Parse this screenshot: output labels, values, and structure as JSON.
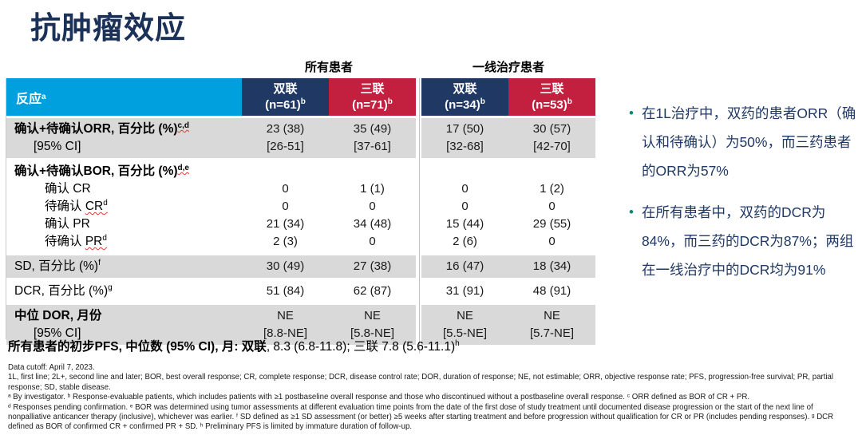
{
  "slide": {
    "title": "抗肿瘤效应"
  },
  "colors": {
    "title_navy": "#1C3158",
    "header_cyan": "#00A0DF",
    "header_navy": "#1F3864",
    "header_red": "#C2203E",
    "row_gray": "#D9D9D9",
    "bullet_dot_teal": "#0E8672",
    "bullet_text_navy": "#1F3864",
    "wavy_underline_red": "#E03C31"
  },
  "table": {
    "group_headers": [
      "所有患者",
      "一线治疗患者"
    ],
    "header_label": {
      "text": "反应",
      "sup": "a"
    },
    "columns": [
      {
        "name": "双联",
        "n": "(n=61)",
        "sup": "b",
        "color": "#1F3864"
      },
      {
        "name": "三联",
        "n": "(n=71)",
        "sup": "b",
        "color": "#C2203E"
      },
      {
        "name": "双联",
        "n": "(n=34)",
        "sup": "b",
        "color": "#1F3864"
      },
      {
        "name": "三联",
        "n": "(n=53)",
        "sup": "b",
        "color": "#C2203E"
      }
    ],
    "rows": [
      {
        "shade": "gray",
        "lines": [
          {
            "label": {
              "text": "确认+待确认ORR, 百分比 (%)",
              "bold": true,
              "indent": 0,
              "sup": "c,d",
              "sup_wavy": true
            },
            "values": [
              "23 (38)",
              "35 (49)",
              "17 (50)",
              "30 (57)"
            ]
          },
          {
            "label": {
              "text": "[95% CI]",
              "indent": 1
            },
            "values": [
              "[26-51]",
              "[37-61]",
              "[32-68]",
              "[42-70]"
            ]
          }
        ]
      },
      {
        "shade": "white",
        "lines": [
          {
            "label": {
              "text": "确认+待确认BOR, 百分比 (%)",
              "bold": true,
              "indent": 0,
              "sup": "d,e",
              "sup_wavy": true
            },
            "values": [
              "",
              "",
              "",
              ""
            ]
          },
          {
            "label": {
              "text": "确认 CR",
              "indent": 2
            },
            "values": [
              "0",
              "1 (1)",
              "0",
              "1 (2)"
            ]
          },
          {
            "label": {
              "text": "待确认 ",
              "indent": 2,
              "wavy_text": "CR",
              "sup": "d",
              "sup_wavy": true
            },
            "values": [
              "0",
              "0",
              "0",
              "0"
            ]
          },
          {
            "label": {
              "text": "确认 PR",
              "indent": 2
            },
            "values": [
              "21 (34)",
              "34 (48)",
              "15 (44)",
              "29 (55)"
            ]
          },
          {
            "label": {
              "text": "待确认 ",
              "indent": 2,
              "wavy_text": "PR",
              "sup": "d",
              "sup_wavy": true
            },
            "values": [
              "2 (3)",
              "0",
              "2 (6)",
              "0"
            ]
          }
        ]
      },
      {
        "shade": "gray",
        "lines": [
          {
            "label": {
              "text": "SD, 百分比 (%)",
              "indent": 0,
              "sup": "f"
            },
            "values": [
              "30 (49)",
              "27 (38)",
              "16 (47)",
              "18 (34)"
            ]
          }
        ]
      },
      {
        "shade": "white",
        "lines": [
          {
            "label": {
              "text": "DCR, 百分比 (%)",
              "indent": 0,
              "sup": "g"
            },
            "values": [
              "51 (84)",
              "62 (87)",
              "31 (91)",
              "48 (91)"
            ]
          }
        ]
      },
      {
        "shade": "gray",
        "lines": [
          {
            "label": {
              "text": "中位 DOR, 月份",
              "bold": true,
              "indent": 0
            },
            "values": [
              "NE",
              "NE",
              "NE",
              "NE"
            ]
          },
          {
            "label": {
              "text": "[95% CI]",
              "indent": 1
            },
            "values": [
              "[8.8-NE]",
              "[5.8-NE]",
              "[5.5-NE]",
              "[5.7-NE]"
            ]
          }
        ]
      }
    ]
  },
  "pfs": {
    "bold": "所有患者的初步PFS, 中位数 (95% CI), 月: 双联",
    "rest": ", 8.3 (6.8-11.8); 三联 7.8 (5.6-11.1)",
    "sup": "h"
  },
  "footnotes": [
    "Data cutoff: April 7, 2023.",
    "1L, first line; 2L+, second line and later; BOR, best overall response; CR, complete response; DCR, disease control rate; DOR, duration of response; NE, not estimable; ORR, objective response rate; PFS, progression-free survival; PR, partial response; SD, stable disease.",
    "ᵃ By investigator. ᵇ Response-evaluable patients, which includes patients with ≥1 postbaseline overall response and those who discontinued without a postbaseline overall response. ᶜ ORR defined as BOR of CR + PR.",
    "ᵈ Responses pending confirmation. ᵉ BOR was determined using tumor assessments at different evaluation time points from the date of the first dose of study treatment until documented disease progression or the start of the next line of nonpalliative anticancer therapy (inclusive), whichever was earlier. ᶠ SD defined as ≥1 SD assessment (or better) ≥5 weeks after starting treatment and before progression without qualification for CR or PR (includes pending responses). ᵍ DCR defined as BOR of confirmed CR + confirmed PR + SD. ʰ Preliminary PFS is limited by immature duration of follow-up."
  ],
  "bullets": [
    "在1L治疗中，双药的患者ORR（确认和待确认）为50%，而三药患者的ORR为57%",
    "在所有患者中，双药的DCR为84%，而三药的DCR为87%；两组在一线治疗中的DCR均为91%"
  ]
}
